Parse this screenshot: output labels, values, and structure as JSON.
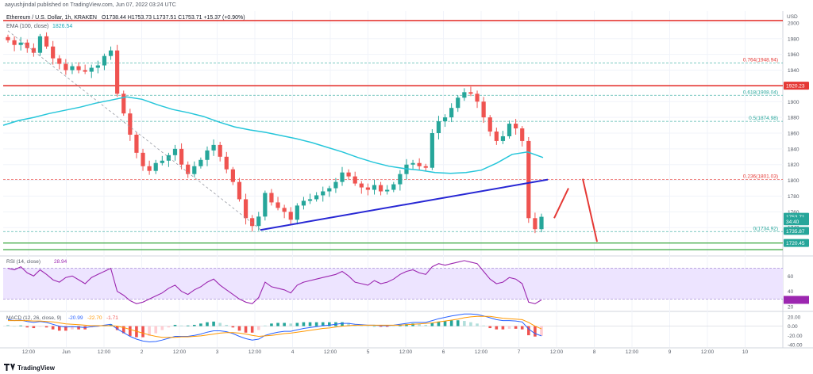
{
  "header": {
    "credit": "aayushjindal published on TradingView.com, Jun 07, 2022 03:24 UTC",
    "symbol": "Ethereum / U.S. Dollar, 1h, KRAKEN",
    "ohlc": "O1738.44 H1753.73 L1737.51 C1753.71 +15.37 (+0.90%)",
    "ema_label": "EMA (100, close)",
    "ema_value": "1826.54",
    "currency": "USD"
  },
  "colors": {
    "up": "#26a69a",
    "down": "#ef5350",
    "ema": "#26c6da",
    "trendline": "#2727d4",
    "resistance": "#e53935",
    "fib": "#26a69a",
    "rsi_band": "#ede4ff",
    "rsi_line": "#9c27b0",
    "macd_line": "#2962ff",
    "signal_line": "#ff9800"
  },
  "chart_data": [
    {
      "type": "candlestick",
      "ylim": [
        1705,
        2015
      ],
      "y_ticks": [
        2000,
        1980,
        1960,
        1940,
        1920,
        1900,
        1880,
        1860,
        1840,
        1820,
        1800,
        1780,
        1760,
        1740
      ],
      "x_ticks": [
        "12:00",
        "Jun",
        "12:00",
        "2",
        "12:00",
        "3",
        "12:00",
        "4",
        "12:00",
        "5",
        "12:00",
        "6",
        "12:00",
        "7",
        "12:00",
        "8",
        "12:00",
        "9",
        "12:00",
        "10"
      ],
      "close_series": [
        1978,
        1972,
        1975,
        1968,
        1962,
        1983,
        1970,
        1955,
        1948,
        1940,
        1945,
        1940,
        1938,
        1943,
        1946,
        1958,
        1965,
        1910,
        1885,
        1858,
        1835,
        1818,
        1812,
        1822,
        1825,
        1832,
        1840,
        1820,
        1808,
        1818,
        1826,
        1838,
        1845,
        1830,
        1814,
        1798,
        1776,
        1752,
        1742,
        1754,
        1784,
        1772,
        1765,
        1760,
        1750,
        1768,
        1774,
        1776,
        1781,
        1786,
        1790,
        1798,
        1810,
        1805,
        1796,
        1791,
        1788,
        1794,
        1786,
        1788,
        1795,
        1808,
        1820,
        1822,
        1818,
        1816,
        1860,
        1875,
        1880,
        1892,
        1905,
        1912,
        1910,
        1900,
        1880,
        1862,
        1850,
        1856,
        1872,
        1866,
        1850,
        1752,
        1738,
        1753.71
      ],
      "ema_series": [
        1870,
        1876,
        1880,
        1885,
        1889,
        1893,
        1898,
        1902,
        1906,
        1903,
        1896,
        1890,
        1886,
        1881,
        1874,
        1868,
        1864,
        1861,
        1857,
        1853,
        1848,
        1842,
        1836,
        1829,
        1823,
        1818,
        1815,
        1813,
        1810,
        1809,
        1810,
        1813,
        1822,
        1833,
        1836,
        1829
      ],
      "trendline": {
        "from": 1737,
        "to": 1801
      },
      "resistance_levels": [
        2003,
        1920.23
      ],
      "support_levels": [
        1720.45,
        1712
      ],
      "fib_levels": [
        {
          "ratio_label": "0.764(1948.94)",
          "value": 1948.94
        },
        {
          "ratio_label": "0.618(1908.04)",
          "value": 1908.04
        },
        {
          "ratio_label": "0.5(1874.98)",
          "value": 1874.98
        },
        {
          "ratio_label": "0.236(1801.03)",
          "value": 1801.03
        },
        {
          "ratio_label": "0(1734.92)",
          "value": 1734.92
        }
      ],
      "price_tags": [
        {
          "label": "1920.23",
          "value": 1920.23,
          "color": "#e53935"
        },
        {
          "label": "1753.71",
          "value": 1753.71,
          "color": "#26a69a"
        },
        {
          "label": "34:40",
          "value": 1748,
          "color": "#26a69a"
        },
        {
          "label": "1735.87",
          "value": 1735.87,
          "color": "#26a69a"
        },
        {
          "label": "1720.45",
          "value": 1720.45,
          "color": "#26a69a"
        }
      ],
      "projection": [
        1790,
        1752,
        1810,
        1802,
        1812,
        1722
      ]
    },
    {
      "type": "line",
      "name": "RSI (14, close)",
      "value_label": "28.94",
      "y_ticks": [
        60,
        40,
        20
      ],
      "band": [
        30,
        70
      ],
      "ylim": [
        15,
        85
      ],
      "values": [
        70,
        68,
        72,
        64,
        60,
        68,
        62,
        55,
        52,
        58,
        60,
        55,
        50,
        58,
        62,
        66,
        70,
        40,
        35,
        28,
        24,
        26,
        30,
        34,
        38,
        44,
        48,
        40,
        36,
        42,
        46,
        52,
        56,
        48,
        42,
        36,
        30,
        26,
        24,
        32,
        52,
        46,
        44,
        42,
        38,
        48,
        52,
        54,
        56,
        58,
        60,
        62,
        66,
        60,
        52,
        50,
        48,
        54,
        50,
        52,
        56,
        62,
        66,
        68,
        64,
        62,
        72,
        76,
        74,
        76,
        78,
        80,
        78,
        76,
        66,
        56,
        50,
        52,
        58,
        56,
        50,
        26,
        24,
        28.94
      ]
    },
    {
      "type": "line",
      "name": "MACD (12, 26, close, 9)",
      "value_labels": [
        "-20.99",
        "-22.70",
        "-1.71"
      ],
      "y_ticks": [
        "20.00",
        "0.00",
        "-20.00",
        "-40.00"
      ],
      "ylim": [
        -45,
        30
      ],
      "macd": [
        14,
        12,
        13,
        10,
        8,
        10,
        8,
        4,
        0,
        -2,
        -1,
        -2,
        -3,
        -1,
        0,
        2,
        4,
        -6,
        -14,
        -22,
        -28,
        -32,
        -34,
        -33,
        -30,
        -26,
        -22,
        -22,
        -22,
        -20,
        -17,
        -13,
        -10,
        -10,
        -12,
        -16,
        -22,
        -27,
        -30,
        -28,
        -20,
        -16,
        -13,
        -11,
        -11,
        -8,
        -5,
        -3,
        -1,
        1,
        2,
        4,
        6,
        6,
        4,
        3,
        2,
        2,
        1,
        1,
        2,
        4,
        6,
        8,
        8,
        8,
        12,
        16,
        19,
        22,
        24,
        26,
        26,
        25,
        22,
        18,
        14,
        12,
        12,
        11,
        9,
        -6,
        -16,
        -21
      ],
      "signal": [
        12,
        12,
        12,
        12,
        11,
        11,
        10,
        9,
        7,
        5,
        4,
        3,
        2,
        1,
        1,
        1,
        1,
        0,
        -3,
        -7,
        -11,
        -15,
        -19,
        -22,
        -24,
        -24,
        -24,
        -23,
        -23,
        -22,
        -21,
        -19,
        -17,
        -15,
        -14,
        -14,
        -15,
        -17,
        -20,
        -22,
        -21,
        -20,
        -18,
        -16,
        -15,
        -13,
        -11,
        -9,
        -7,
        -5,
        -4,
        -2,
        0,
        1,
        2,
        2,
        2,
        2,
        2,
        2,
        2,
        2,
        3,
        4,
        5,
        6,
        7,
        9,
        11,
        13,
        15,
        18,
        20,
        21,
        21,
        21,
        19,
        17,
        16,
        15,
        14,
        8,
        0,
        -6
      ]
    }
  ],
  "footer": {
    "brand": "TradingView"
  }
}
